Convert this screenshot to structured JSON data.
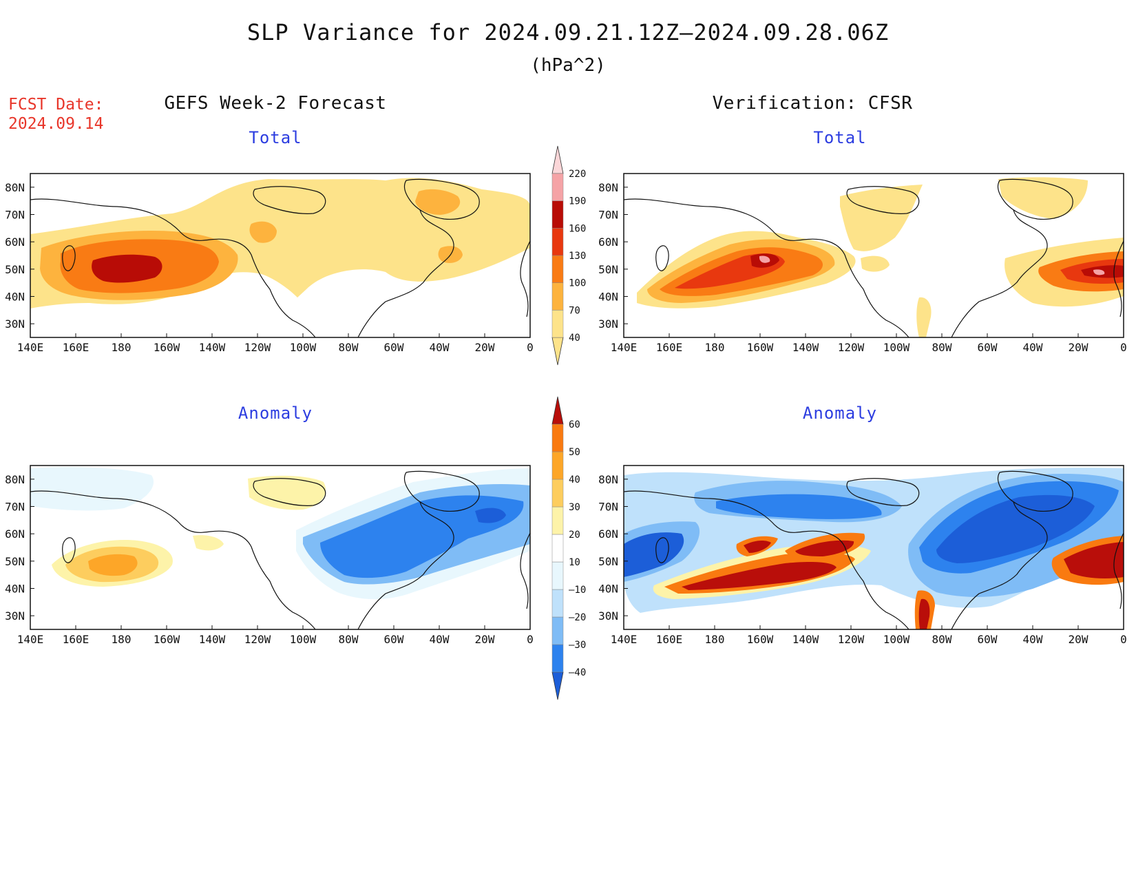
{
  "header": {
    "title": "SLP Variance for 2024.09.21.12Z–2024.09.28.06Z",
    "units": "(hPa^2)",
    "fcst_label": "FCST Date:",
    "fcst_date": "2024.09.14"
  },
  "columns": {
    "left_title": "GEFS Week-2 Forecast",
    "right_title": "Verification: CFSR"
  },
  "panels": {
    "top_left": "Total",
    "top_right": "Total",
    "bottom_left": "Anomaly",
    "bottom_right": "Anomaly"
  },
  "axes": {
    "lat_labels": [
      "80N",
      "70N",
      "60N",
      "50N",
      "40N",
      "30N"
    ],
    "lon_labels": [
      "140E",
      "160E",
      "180",
      "160W",
      "140W",
      "120W",
      "100W",
      "80W",
      "60W",
      "40W",
      "20W",
      "0"
    ]
  },
  "colorbars": {
    "total": {
      "levels": [
        "40",
        "70",
        "100",
        "130",
        "160",
        "190",
        "220"
      ],
      "colors": [
        "#fde38a",
        "#fdb33e",
        "#f97b14",
        "#e8380f",
        "#b80c06",
        "#f5a3a6",
        "#fbd6d8"
      ]
    },
    "anomaly": {
      "levels": [
        "–40",
        "–30",
        "–20",
        "–10",
        "10",
        "20",
        "30",
        "40",
        "50",
        "60"
      ],
      "colors": [
        "#1c5ed8",
        "#2d82ee",
        "#7fbcf6",
        "#bfe1fb",
        "#e8f7fd",
        "#ffffff",
        "#fdf3a9",
        "#fdcd5e",
        "#fda628",
        "#f97a10",
        "#e33b0c",
        "#b90e0a"
      ]
    }
  }
}
